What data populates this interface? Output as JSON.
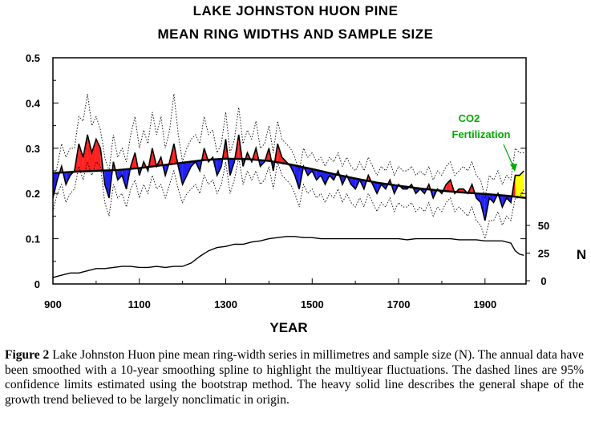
{
  "chart_data": {
    "type": "line",
    "title": "LAKE JOHNSTON HUON PINE",
    "subtitle": "MEAN RING WIDTHS AND SAMPLE SIZE",
    "xlabel": "YEAR",
    "ylabel_right": "N",
    "xlim": [
      900,
      1995
    ],
    "ylim": [
      0,
      0.5
    ],
    "x_ticks": [
      "900",
      "1100",
      "1300",
      "1500",
      "1700",
      "1900"
    ],
    "y_ticks": [
      "0",
      "0.1",
      "0.2",
      "0.3",
      "0.4",
      "0.5"
    ],
    "n_ticks": [
      "0",
      "25",
      "50"
    ],
    "n_range": [
      0,
      50
    ],
    "annotation": {
      "line1": "CO2",
      "line2": "Fertilization",
      "color": "#00aa00"
    },
    "colors": {
      "above_trend": "#ff2020",
      "below_trend": "#2020ff",
      "co2_period": "#ffff00"
    },
    "series": [
      {
        "role": "mean-ring-width",
        "x": [
          900,
          910,
          920,
          930,
          940,
          950,
          960,
          970,
          980,
          990,
          1000,
          1010,
          1020,
          1030,
          1040,
          1050,
          1060,
          1070,
          1080,
          1090,
          1100,
          1110,
          1120,
          1130,
          1140,
          1150,
          1160,
          1170,
          1180,
          1190,
          1200,
          1210,
          1220,
          1230,
          1240,
          1250,
          1260,
          1270,
          1280,
          1290,
          1300,
          1310,
          1320,
          1330,
          1340,
          1350,
          1360,
          1370,
          1380,
          1390,
          1400,
          1410,
          1420,
          1430,
          1440,
          1450,
          1460,
          1470,
          1480,
          1490,
          1500,
          1510,
          1520,
          1530,
          1540,
          1550,
          1560,
          1570,
          1580,
          1590,
          1600,
          1610,
          1620,
          1630,
          1640,
          1650,
          1660,
          1670,
          1680,
          1690,
          1700,
          1710,
          1720,
          1730,
          1740,
          1750,
          1760,
          1770,
          1780,
          1790,
          1800,
          1810,
          1820,
          1830,
          1840,
          1850,
          1860,
          1870,
          1880,
          1890,
          1900,
          1910,
          1920,
          1930,
          1940,
          1950,
          1960,
          1970,
          1980,
          1990
        ],
        "values": [
          0.19,
          0.23,
          0.26,
          0.22,
          0.24,
          0.25,
          0.31,
          0.28,
          0.33,
          0.29,
          0.32,
          0.3,
          0.22,
          0.19,
          0.27,
          0.23,
          0.24,
          0.21,
          0.26,
          0.29,
          0.24,
          0.27,
          0.25,
          0.3,
          0.26,
          0.28,
          0.24,
          0.27,
          0.31,
          0.26,
          0.22,
          0.24,
          0.26,
          0.27,
          0.25,
          0.3,
          0.27,
          0.28,
          0.24,
          0.26,
          0.32,
          0.24,
          0.27,
          0.33,
          0.26,
          0.29,
          0.27,
          0.3,
          0.26,
          0.27,
          0.3,
          0.25,
          0.31,
          0.28,
          0.27,
          0.26,
          0.24,
          0.21,
          0.26,
          0.24,
          0.25,
          0.23,
          0.24,
          0.22,
          0.24,
          0.23,
          0.25,
          0.22,
          0.24,
          0.22,
          0.21,
          0.23,
          0.21,
          0.24,
          0.22,
          0.2,
          0.22,
          0.21,
          0.23,
          0.2,
          0.22,
          0.21,
          0.21,
          0.22,
          0.2,
          0.21,
          0.2,
          0.22,
          0.19,
          0.21,
          0.2,
          0.22,
          0.23,
          0.2,
          0.21,
          0.21,
          0.2,
          0.22,
          0.19,
          0.18,
          0.14,
          0.19,
          0.18,
          0.2,
          0.17,
          0.19,
          0.18,
          0.24,
          0.24,
          0.25
        ]
      },
      {
        "role": "upper-95-confidence",
        "x": [
          900,
          910,
          920,
          930,
          940,
          950,
          960,
          970,
          980,
          990,
          1000,
          1010,
          1020,
          1030,
          1040,
          1050,
          1060,
          1070,
          1080,
          1090,
          1100,
          1110,
          1120,
          1130,
          1140,
          1150,
          1160,
          1170,
          1180,
          1190,
          1200,
          1210,
          1220,
          1230,
          1240,
          1250,
          1260,
          1270,
          1280,
          1290,
          1300,
          1310,
          1320,
          1330,
          1340,
          1350,
          1360,
          1370,
          1380,
          1390,
          1400,
          1410,
          1420,
          1430,
          1440,
          1450,
          1460,
          1470,
          1480,
          1490,
          1500,
          1510,
          1520,
          1530,
          1540,
          1550,
          1560,
          1570,
          1580,
          1590,
          1600,
          1610,
          1620,
          1630,
          1640,
          1650,
          1660,
          1670,
          1680,
          1690,
          1700,
          1710,
          1720,
          1730,
          1740,
          1750,
          1760,
          1770,
          1780,
          1790,
          1800,
          1810,
          1820,
          1830,
          1840,
          1850,
          1860,
          1870,
          1880,
          1890,
          1900,
          1910,
          1920,
          1930,
          1940,
          1950,
          1960,
          1970,
          1980,
          1990
        ],
        "values": [
          0.22,
          0.26,
          0.31,
          0.28,
          0.3,
          0.3,
          0.37,
          0.36,
          0.42,
          0.35,
          0.37,
          0.34,
          0.28,
          0.25,
          0.33,
          0.28,
          0.3,
          0.27,
          0.33,
          0.37,
          0.3,
          0.34,
          0.31,
          0.38,
          0.33,
          0.37,
          0.3,
          0.34,
          0.42,
          0.33,
          0.27,
          0.3,
          0.32,
          0.33,
          0.31,
          0.37,
          0.33,
          0.34,
          0.29,
          0.31,
          0.38,
          0.29,
          0.32,
          0.39,
          0.31,
          0.34,
          0.32,
          0.36,
          0.3,
          0.31,
          0.35,
          0.29,
          0.36,
          0.32,
          0.31,
          0.3,
          0.28,
          0.25,
          0.3,
          0.28,
          0.29,
          0.27,
          0.28,
          0.26,
          0.28,
          0.27,
          0.29,
          0.26,
          0.28,
          0.26,
          0.25,
          0.27,
          0.25,
          0.28,
          0.26,
          0.24,
          0.26,
          0.25,
          0.27,
          0.24,
          0.26,
          0.25,
          0.25,
          0.26,
          0.24,
          0.25,
          0.24,
          0.26,
          0.23,
          0.25,
          0.24,
          0.26,
          0.27,
          0.24,
          0.25,
          0.26,
          0.25,
          0.27,
          0.24,
          0.23,
          0.19,
          0.24,
          0.23,
          0.25,
          0.22,
          0.24,
          0.23,
          0.3,
          0.29,
          0.29
        ]
      },
      {
        "role": "lower-95-confidence",
        "x": [
          900,
          910,
          920,
          930,
          940,
          950,
          960,
          970,
          980,
          990,
          1000,
          1010,
          1020,
          1030,
          1040,
          1050,
          1060,
          1070,
          1080,
          1090,
          1100,
          1110,
          1120,
          1130,
          1140,
          1150,
          1160,
          1170,
          1180,
          1190,
          1200,
          1210,
          1220,
          1230,
          1240,
          1250,
          1260,
          1270,
          1280,
          1290,
          1300,
          1310,
          1320,
          1330,
          1340,
          1350,
          1360,
          1370,
          1380,
          1390,
          1400,
          1410,
          1420,
          1430,
          1440,
          1450,
          1460,
          1470,
          1480,
          1490,
          1500,
          1510,
          1520,
          1530,
          1540,
          1550,
          1560,
          1570,
          1580,
          1590,
          1600,
          1610,
          1620,
          1630,
          1640,
          1650,
          1660,
          1670,
          1680,
          1690,
          1700,
          1710,
          1720,
          1730,
          1740,
          1750,
          1760,
          1770,
          1780,
          1790,
          1800,
          1810,
          1820,
          1830,
          1840,
          1850,
          1860,
          1870,
          1880,
          1890,
          1900,
          1910,
          1920,
          1930,
          1940,
          1950,
          1960,
          1970,
          1980,
          1990
        ],
        "values": [
          0.16,
          0.2,
          0.22,
          0.18,
          0.2,
          0.21,
          0.26,
          0.23,
          0.27,
          0.24,
          0.27,
          0.26,
          0.18,
          0.15,
          0.22,
          0.19,
          0.2,
          0.17,
          0.21,
          0.23,
          0.19,
          0.22,
          0.2,
          0.24,
          0.21,
          0.22,
          0.19,
          0.22,
          0.25,
          0.21,
          0.18,
          0.2,
          0.21,
          0.22,
          0.2,
          0.24,
          0.22,
          0.23,
          0.2,
          0.22,
          0.27,
          0.2,
          0.23,
          0.28,
          0.22,
          0.25,
          0.23,
          0.25,
          0.22,
          0.23,
          0.26,
          0.21,
          0.27,
          0.24,
          0.23,
          0.22,
          0.2,
          0.17,
          0.22,
          0.2,
          0.21,
          0.19,
          0.2,
          0.18,
          0.2,
          0.19,
          0.21,
          0.18,
          0.2,
          0.18,
          0.17,
          0.19,
          0.17,
          0.2,
          0.18,
          0.16,
          0.18,
          0.17,
          0.19,
          0.16,
          0.18,
          0.17,
          0.17,
          0.18,
          0.16,
          0.17,
          0.16,
          0.18,
          0.15,
          0.17,
          0.16,
          0.18,
          0.19,
          0.16,
          0.17,
          0.16,
          0.15,
          0.17,
          0.14,
          0.13,
          0.1,
          0.14,
          0.14,
          0.16,
          0.13,
          0.15,
          0.14,
          0.19,
          0.19,
          0.21
        ]
      },
      {
        "role": "growth-trend",
        "x": [
          900,
          950,
          1000,
          1050,
          1100,
          1150,
          1200,
          1250,
          1300,
          1350,
          1400,
          1450,
          1500,
          1550,
          1600,
          1650,
          1700,
          1750,
          1800,
          1850,
          1900,
          1950,
          1995
        ],
        "values": [
          0.245,
          0.248,
          0.25,
          0.252,
          0.256,
          0.262,
          0.268,
          0.274,
          0.277,
          0.276,
          0.272,
          0.264,
          0.254,
          0.243,
          0.233,
          0.224,
          0.217,
          0.211,
          0.206,
          0.202,
          0.199,
          0.195,
          0.19
        ]
      },
      {
        "role": "sample-size",
        "x": [
          900,
          920,
          940,
          960,
          980,
          1000,
          1020,
          1040,
          1060,
          1080,
          1100,
          1120,
          1140,
          1160,
          1180,
          1200,
          1220,
          1240,
          1260,
          1280,
          1300,
          1320,
          1340,
          1360,
          1380,
          1400,
          1420,
          1440,
          1460,
          1480,
          1500,
          1520,
          1540,
          1560,
          1580,
          1600,
          1620,
          1640,
          1660,
          1680,
          1700,
          1720,
          1740,
          1760,
          1780,
          1800,
          1820,
          1840,
          1860,
          1880,
          1900,
          1920,
          1940,
          1960,
          1970,
          1980,
          1990
        ],
        "values": [
          3,
          5,
          7,
          7,
          9,
          11,
          11,
          12,
          13,
          13,
          12,
          12,
          13,
          12,
          13,
          13,
          16,
          22,
          27,
          30,
          31,
          33,
          33,
          35,
          36,
          38,
          39,
          40,
          40,
          39,
          39,
          38,
          38,
          38,
          38,
          38,
          38,
          38,
          38,
          38,
          38,
          37,
          38,
          38,
          38,
          38,
          38,
          37,
          37,
          37,
          36,
          36,
          36,
          34,
          27,
          24,
          23
        ]
      }
    ]
  },
  "caption": {
    "label": "Figure 2",
    "text": " Lake Johnston Huon pine mean ring-width series in millimetres and sample size (N). The annual data have been smoothed with a 10-year smoothing spline to highlight the multiyear fluctuations. The dashed lines are 95% confidence limits estimated using the bootstrap method. The heavy solid line describes the general shape of the growth trend believed to be largely nonclimatic in origin."
  }
}
